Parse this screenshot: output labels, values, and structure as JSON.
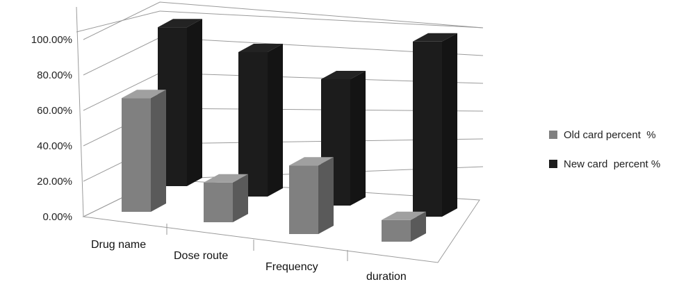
{
  "chart_data": {
    "type": "bar",
    "categories": [
      "Drug name",
      "Dose route",
      "Frequency",
      "duration"
    ],
    "series": [
      {
        "name": "Old card percent  %",
        "values": [
          0.63,
          0.22,
          0.38,
          0.12
        ],
        "color": "#808080"
      },
      {
        "name": "New card  percent %",
        "values": [
          0.88,
          0.8,
          0.7,
          0.97
        ],
        "color": "#1c1c1c"
      }
    ],
    "y_ticks": [
      "0.00%",
      "20.00%",
      "40.00%",
      "60.00%",
      "80.00%",
      "100.00%"
    ],
    "ylim": [
      0,
      1
    ],
    "grid": true,
    "legend_position": "right"
  }
}
